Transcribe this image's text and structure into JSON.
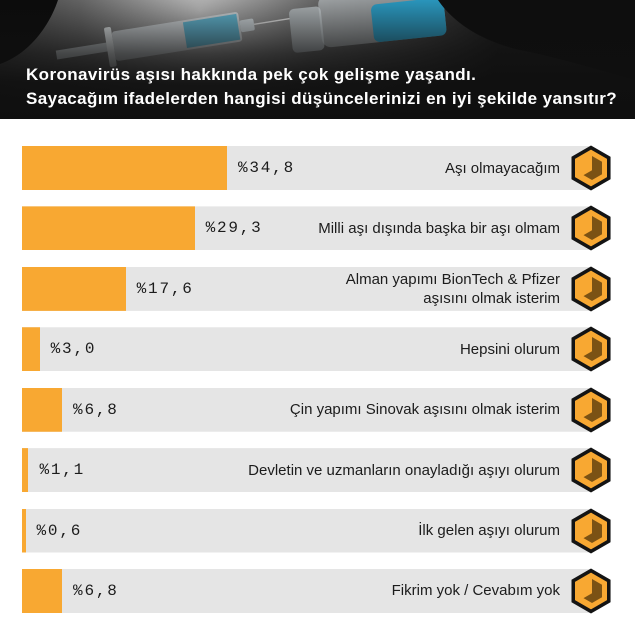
{
  "chart_data": {
    "type": "bar",
    "orientation": "horizontal",
    "title": "Koronavirüs aşısı hakkında pek çok gelişme yaşandı.\nSayacağım ifadelerden hangisi düşüncelerinizi en iyi şekilde yansıtır?",
    "categories": [
      "Aşı olmayacağım",
      "Milli aşı dışında başka bir aşı olmam",
      "Alman yapımı BionTech & Pfizer\naşısını olmak isterim",
      "Hepsini olurum",
      "Çin yapımı Sinovak aşısını olmak isterim",
      "Devletin ve uzmanların onayladığı aşıyı olurum",
      "İlk gelen aşıyı olurum",
      "Fikrim yok / Cevabım yok"
    ],
    "values": [
      34.8,
      29.3,
      17.6,
      3.0,
      6.8,
      1.1,
      0.6,
      6.8
    ],
    "value_labels": [
      "%34,8",
      "%29,3",
      "%17,6",
      "%3,0",
      "%6,8",
      "%1,1",
      "%0,6",
      "%6,8"
    ],
    "xlim": [
      0,
      100
    ],
    "grid": false,
    "legend": "none"
  },
  "icons": {
    "row_marker": "hexagon-icon"
  },
  "colors": {
    "bar_fill": "#F8A832",
    "bar_track": "#E5E5E5",
    "text": "#1C1C1C",
    "header_text": "#FFFFFF",
    "header_background": "#141414",
    "icon_fill": "#F8A832",
    "icon_outline": "#141414",
    "icon_shadow": "#7B5214"
  }
}
